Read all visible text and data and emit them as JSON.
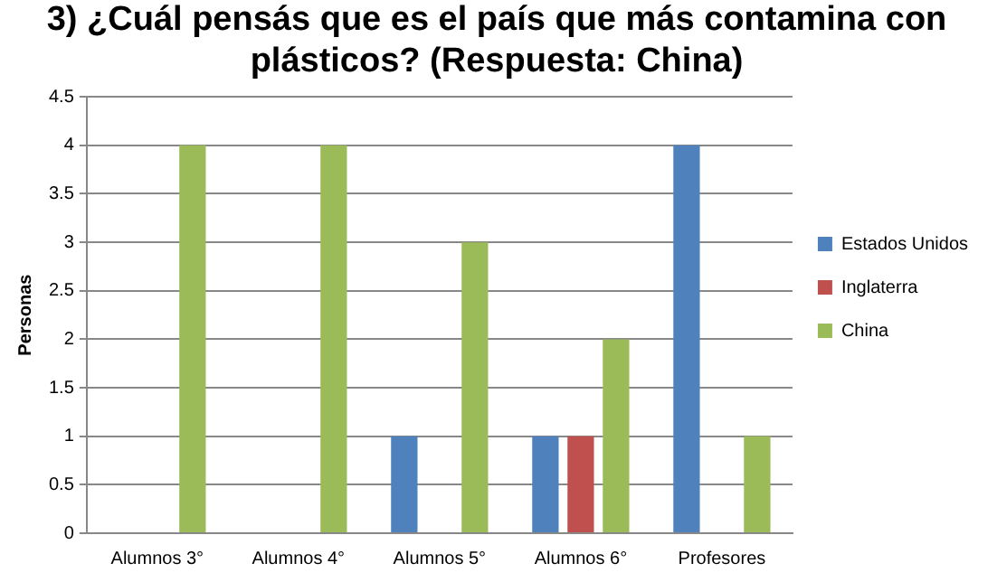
{
  "chart_data": {
    "type": "bar",
    "title": "3) ¿Cuál pensás que es el país que más contamina con plásticos? (Respuesta: China)",
    "ylabel": "Personas",
    "categories": [
      "Alumnos 3°",
      "Alumnos 4°",
      "Alumnos 5°",
      "Alumnos 6°",
      "Profesores"
    ],
    "series": [
      {
        "name": "Estados Unidos",
        "color": "#4f81bd",
        "values": [
          0,
          0,
          1,
          1,
          4
        ]
      },
      {
        "name": "Inglaterra",
        "color": "#c0504d",
        "values": [
          0,
          0,
          0,
          1,
          0
        ]
      },
      {
        "name": "China",
        "color": "#9bbb59",
        "values": [
          4,
          4,
          3,
          2,
          1
        ]
      }
    ],
    "ylim": [
      0,
      4.5
    ],
    "yticks": [
      0,
      0.5,
      1,
      1.5,
      2,
      2.5,
      3,
      3.5,
      4,
      4.5
    ],
    "grid": "y",
    "legend": "right"
  }
}
